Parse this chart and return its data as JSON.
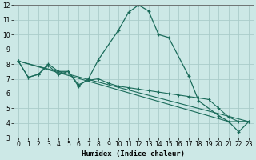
{
  "title": "",
  "xlabel": "Humidex (Indice chaleur)",
  "background_color": "#cce8e6",
  "grid_color": "#aaccca",
  "line_color": "#1a6b5a",
  "xlim": [
    -0.5,
    23.5
  ],
  "ylim": [
    3,
    12
  ],
  "xticks": [
    0,
    1,
    2,
    3,
    4,
    5,
    6,
    7,
    8,
    9,
    10,
    11,
    12,
    13,
    14,
    15,
    16,
    17,
    18,
    19,
    20,
    21,
    22,
    23
  ],
  "yticks": [
    3,
    4,
    5,
    6,
    7,
    8,
    9,
    10,
    11,
    12
  ],
  "series1_x": [
    0,
    1,
    2,
    3,
    4,
    5,
    6,
    7,
    8,
    10,
    11,
    12,
    13,
    14,
    15,
    17,
    18,
    20,
    21,
    22,
    23
  ],
  "series1_y": [
    8.2,
    7.1,
    7.3,
    8.0,
    7.5,
    7.5,
    6.5,
    7.0,
    8.3,
    10.3,
    11.5,
    12.0,
    11.6,
    10.0,
    9.8,
    7.2,
    5.5,
    4.5,
    4.1,
    3.4,
    4.1
  ],
  "series2_x": [
    0,
    1,
    2,
    3,
    4,
    5,
    6,
    7,
    8,
    9,
    10,
    11,
    12,
    13,
    14,
    15,
    16,
    17,
    18,
    19,
    20,
    21,
    22,
    23
  ],
  "series2_y": [
    8.2,
    7.1,
    7.3,
    7.9,
    7.3,
    7.5,
    6.6,
    6.9,
    7.0,
    6.7,
    6.5,
    6.4,
    6.3,
    6.2,
    6.1,
    6.0,
    5.9,
    5.8,
    5.7,
    5.6,
    5.0,
    4.4,
    4.1,
    4.1
  ],
  "series3_x": [
    0,
    23
  ],
  "series3_y": [
    8.2,
    4.1
  ],
  "series4_x": [
    0,
    21,
    23
  ],
  "series4_y": [
    8.2,
    4.1,
    4.1
  ]
}
